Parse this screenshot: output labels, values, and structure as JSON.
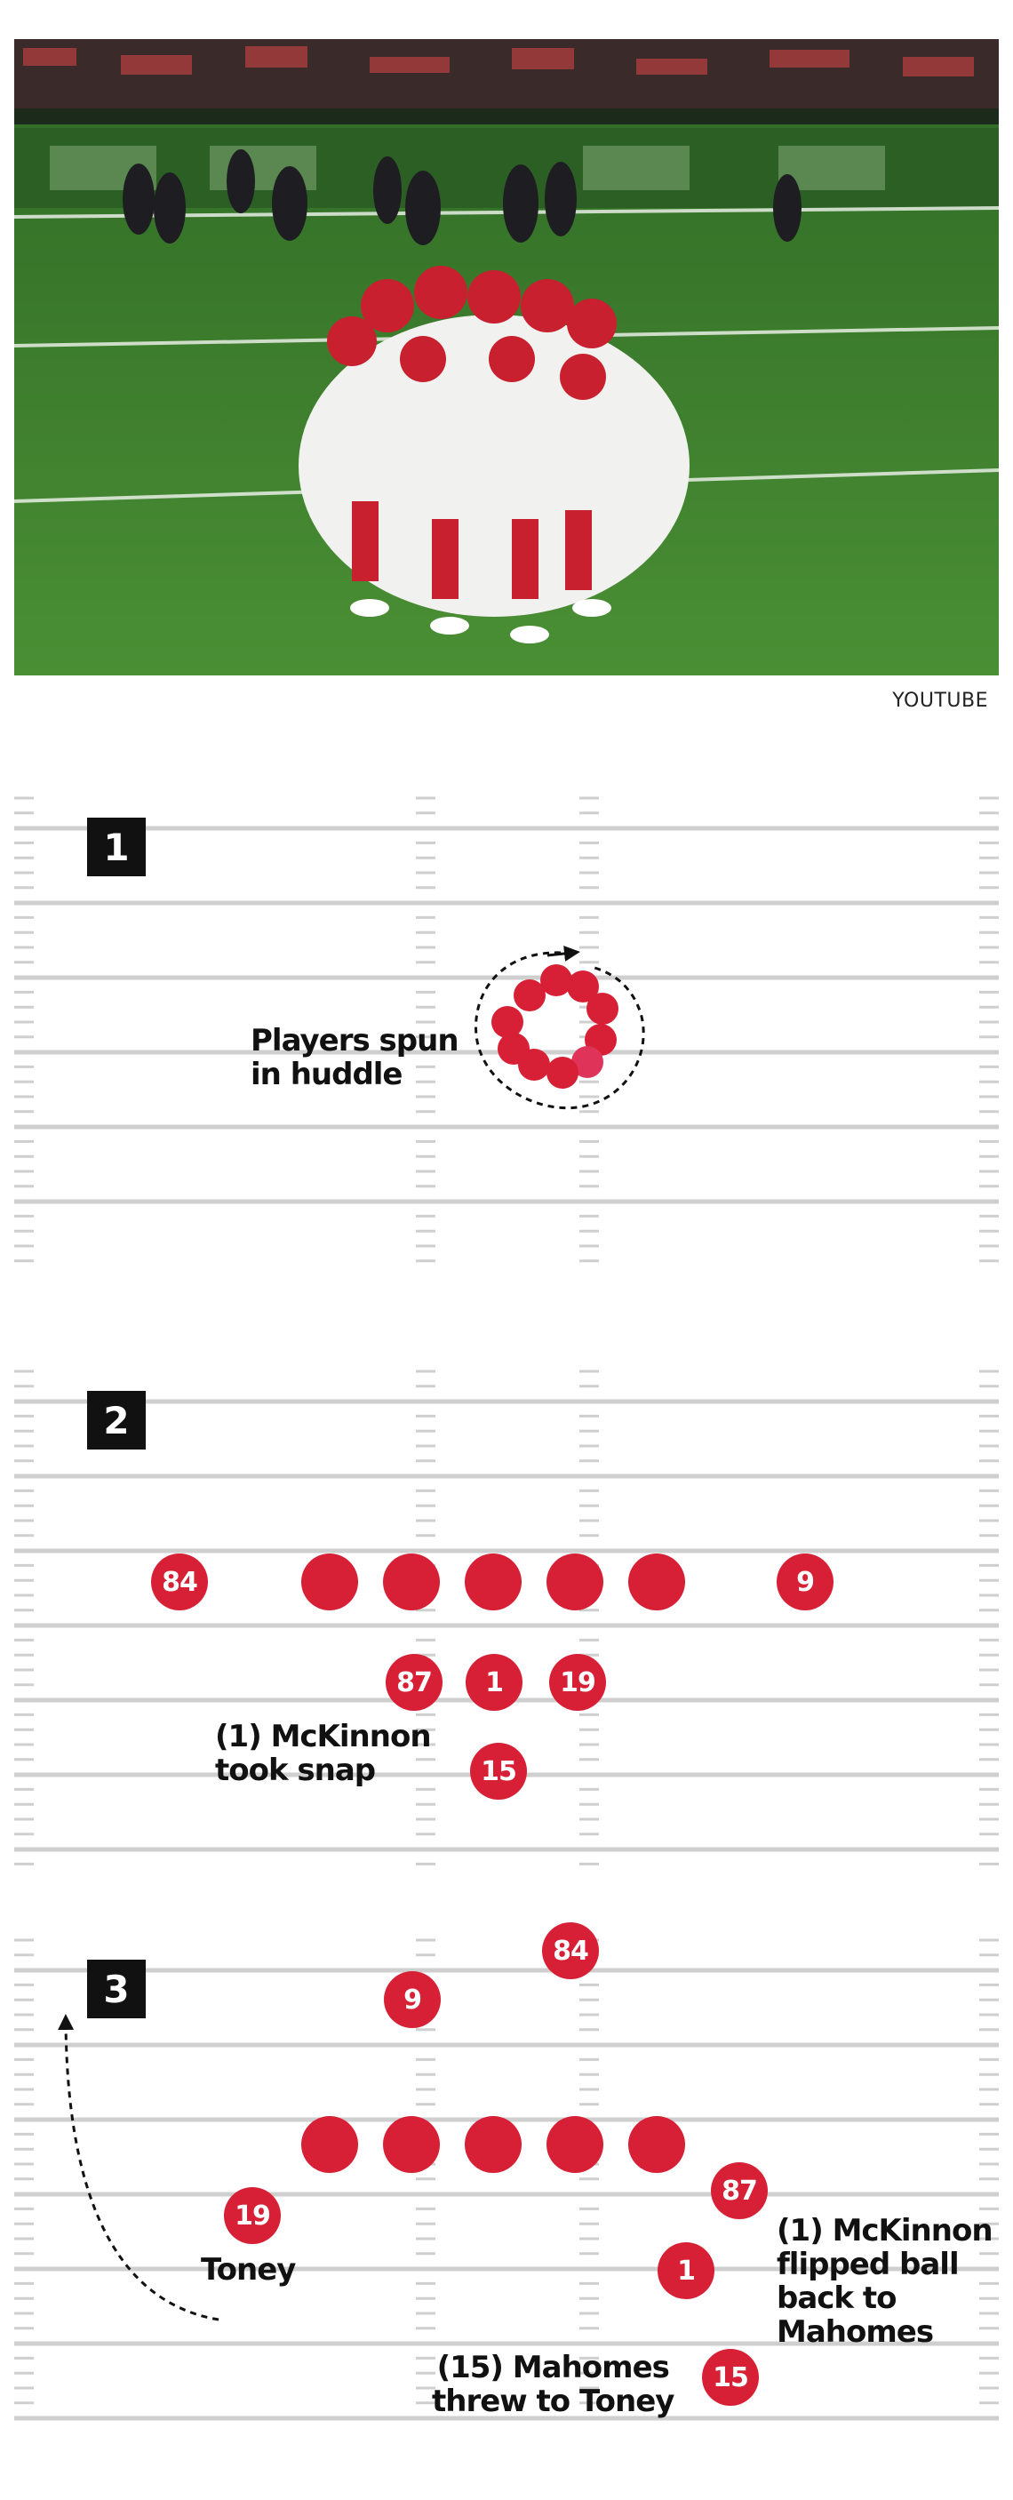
{
  "photo": {
    "credit": "YOUTUBE",
    "description_icon": "huddle-photo"
  },
  "panel1": {
    "step": "1",
    "note": [
      "Players spun",
      "in huddle"
    ]
  },
  "panel2": {
    "step": "2",
    "players": {
      "wr_left": "84",
      "wr_right": "9",
      "te": "87",
      "center_back": "1",
      "slot": "19",
      "qb": "15"
    },
    "note": [
      "(1) McKinnon",
      "took snap"
    ]
  },
  "panel3": {
    "step": "3",
    "players": {
      "p84": "84",
      "p9": "9",
      "p87": "87",
      "p19": "19",
      "p1": "1",
      "p15": "15"
    },
    "label_toney": "Toney",
    "note_mckinnon": [
      "(1) McKinnon",
      "flipped ball",
      "back to",
      "Mahomes"
    ],
    "note_mahomes": [
      "(15) Mahomes",
      "threw to Toney"
    ]
  },
  "colors": {
    "player_red": "#d71f35",
    "badge": "#111111",
    "field_line": "#cfcfcf"
  }
}
